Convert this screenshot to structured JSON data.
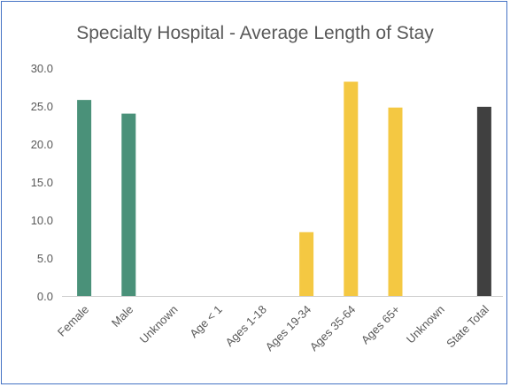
{
  "chart_data": {
    "type": "bar",
    "title": "Specialty Hospital - Average Length of Stay",
    "xlabel": "",
    "ylabel": "",
    "ylim": [
      0,
      30
    ],
    "yticks": [
      "0.0",
      "5.0",
      "10.0",
      "15.0",
      "20.0",
      "25.0",
      "30.0"
    ],
    "grid": false,
    "legend": "none",
    "categories": [
      "Female",
      "Male",
      "Unknown",
      "Age < 1",
      "Ages 1-18",
      "Ages 19-34",
      "Ages 35-64",
      "Ages 65+",
      "Unknown",
      "State Total"
    ],
    "values": [
      25.8,
      24.0,
      null,
      null,
      null,
      8.4,
      28.2,
      24.8,
      null,
      24.9
    ],
    "colors": [
      "#4a9179",
      "#4a9179",
      "#4a9179",
      "#f4c842",
      "#f4c842",
      "#f4c842",
      "#f4c842",
      "#f4c842",
      "#f4c842",
      "#404040"
    ]
  }
}
